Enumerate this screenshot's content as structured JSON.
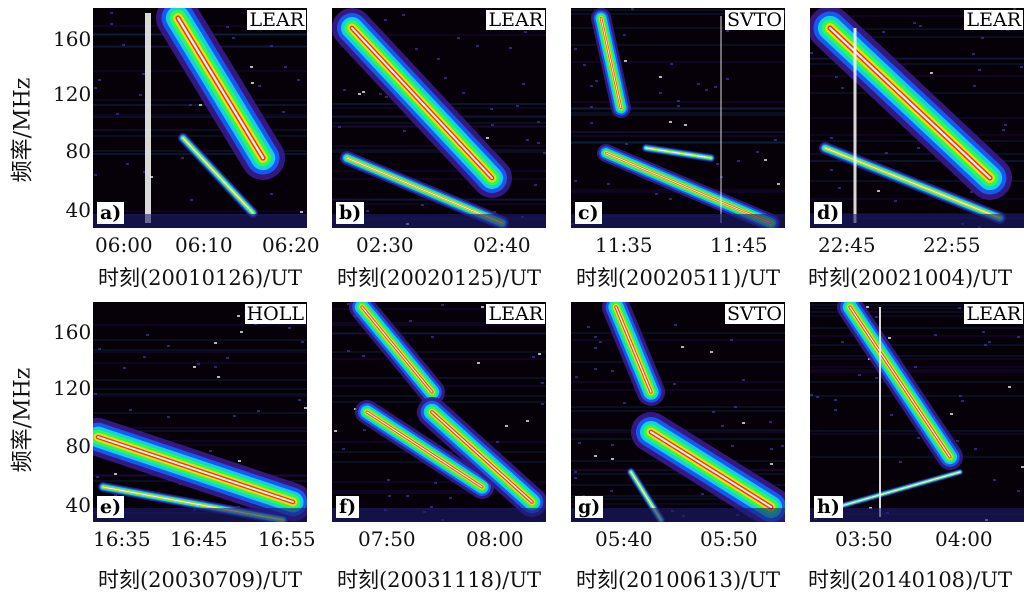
{
  "y_axis": {
    "label": "频率/MHz",
    "ticks": [
      "160",
      "120",
      "80",
      "40"
    ]
  },
  "chart_data": [
    {
      "type": "heatmap",
      "panel": "a)",
      "station": "LEAR",
      "xlabel": "时刻(20010126)/UT",
      "xticks": [
        "06:00",
        "06:10",
        "06:20"
      ],
      "ylabel": "频率/MHz",
      "yticks": [
        40,
        80,
        120,
        160
      ],
      "ylim": [
        28,
        180
      ]
    },
    {
      "type": "heatmap",
      "panel": "b)",
      "station": "LEAR",
      "xlabel": "时刻(20020125)/UT",
      "xticks": [
        "02:30",
        "02:40"
      ],
      "ylabel": "频率/MHz",
      "yticks": [
        40,
        80,
        120,
        160
      ],
      "ylim": [
        28,
        180
      ]
    },
    {
      "type": "heatmap",
      "panel": "c)",
      "station": "SVTO",
      "xlabel": "时刻(20020511)/UT",
      "xticks": [
        "11:35",
        "11:45"
      ],
      "ylabel": "频率/MHz",
      "yticks": [
        40,
        80,
        120,
        160
      ],
      "ylim": [
        28,
        180
      ]
    },
    {
      "type": "heatmap",
      "panel": "d)",
      "station": "LEAR",
      "xlabel": "时刻(20021004)/UT",
      "xticks": [
        "22:45",
        "22:55"
      ],
      "ylabel": "频率/MHz",
      "yticks": [
        40,
        80,
        120,
        160
      ],
      "ylim": [
        28,
        180
      ]
    },
    {
      "type": "heatmap",
      "panel": "e)",
      "station": "HOLL",
      "xlabel": "时刻(20030709)/UT",
      "xticks": [
        "16:35",
        "16:45",
        "16:55"
      ],
      "ylabel": "频率/MHz",
      "yticks": [
        40,
        80,
        120,
        160
      ],
      "ylim": [
        28,
        180
      ]
    },
    {
      "type": "heatmap",
      "panel": "f)",
      "station": "LEAR",
      "xlabel": "时刻(20031118)/UT",
      "xticks": [
        "07:50",
        "08:00"
      ],
      "ylabel": "频率/MHz",
      "yticks": [
        40,
        80,
        120,
        160
      ],
      "ylim": [
        28,
        180
      ]
    },
    {
      "type": "heatmap",
      "panel": "g)",
      "station": "SVTO",
      "xlabel": "时刻(20100613)/UT",
      "xticks": [
        "05:40",
        "05:50"
      ],
      "ylabel": "频率/MHz",
      "yticks": [
        40,
        80,
        120,
        160
      ],
      "ylim": [
        28,
        180
      ]
    },
    {
      "type": "heatmap",
      "panel": "h)",
      "station": "LEAR",
      "xlabel": "时刻(20140108)/UT",
      "xticks": [
        "03:50",
        "04:00"
      ],
      "ylabel": "频率/MHz",
      "yticks": [
        40,
        80,
        120,
        160
      ],
      "ylim": [
        28,
        180
      ]
    }
  ],
  "colors": {
    "background": "#060008",
    "low": "#3a1a8c",
    "mid_low": "#1560ff",
    "mid": "#10e0e0",
    "mid_high": "#30ff40",
    "high": "#ffe000",
    "peak": "#ff2020",
    "saturated": "#ffffff"
  }
}
